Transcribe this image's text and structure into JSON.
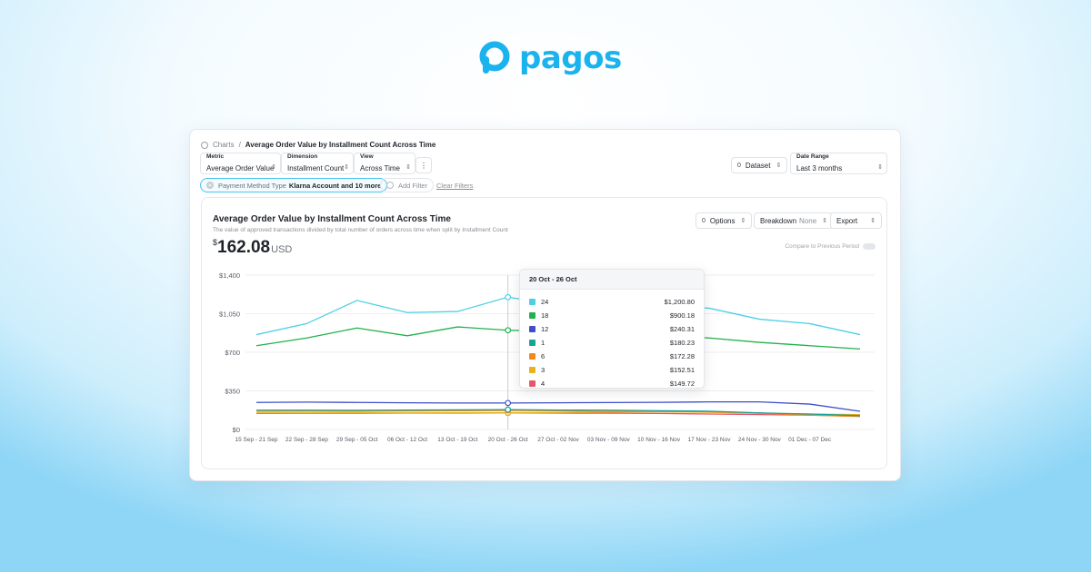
{
  "brand": {
    "name": "pagos"
  },
  "breadcrumb": {
    "root": "Charts",
    "separator": "/",
    "current": "Average Order Value by Installment Count Across Time"
  },
  "controls": {
    "metric": {
      "label": "Metric",
      "value": "Average Order Value"
    },
    "dimension": {
      "label": "Dimension",
      "value": "Installment Count"
    },
    "view": {
      "label": "View",
      "value": "Across Time"
    },
    "more": "⋮",
    "dataset": {
      "count": "0",
      "label": "Dataset"
    },
    "date_range": {
      "label": "Date Range",
      "value": "Last 3 months"
    }
  },
  "filters": {
    "active": {
      "key": "Payment Method Type",
      "value": "Klarna Account and 10 more"
    },
    "add": "Add Filter",
    "clear": "Clear Filters"
  },
  "panel": {
    "title": "Average Order Value by Installment Count Across Time",
    "subtitle": "The value of approved transactions divided by total number of orders across time when split by Installment Count",
    "kpi": {
      "currency": "$",
      "value": "162.08",
      "unit": "USD"
    },
    "options": {
      "count": "0",
      "label": "Options"
    },
    "breakdown": {
      "label": "Breakdown",
      "value": "None"
    },
    "export": "Export",
    "compare": "Compare to Previous Period"
  },
  "tooltip": {
    "title": "20 Oct - 26 Oct",
    "rows": [
      {
        "name": "24",
        "value": "$1,200.80",
        "color": "#4ecfe6"
      },
      {
        "name": "18",
        "value": "$900.18",
        "color": "#22b14c"
      },
      {
        "name": "12",
        "value": "$240.31",
        "color": "#3f4fc9"
      },
      {
        "name": "1",
        "value": "$180.23",
        "color": "#17a398"
      },
      {
        "name": "6",
        "value": "$172.28",
        "color": "#f08a1c"
      },
      {
        "name": "3",
        "value": "$152.51",
        "color": "#e8b21e"
      },
      {
        "name": "4",
        "value": "$149.72",
        "color": "#e5566a"
      }
    ]
  },
  "chart_data": {
    "type": "line",
    "x": [
      "15 Sep - 21 Sep",
      "22 Sep - 28 Sep",
      "29 Sep - 05 Oct",
      "06 Oct - 12 Oct",
      "13 Oct - 19 Oct",
      "20 Oct - 26 Oct",
      "27 Oct - 02 Nov",
      "03 Nov - 09 Nov",
      "10 Nov - 16 Nov",
      "17 Nov - 23 Nov",
      "24 Nov - 30 Nov",
      "01 Dec - 07 Dec",
      ""
    ],
    "ylim": [
      0,
      1400
    ],
    "yticks": [
      {
        "value": 0,
        "label": "$0"
      },
      {
        "value": 350,
        "label": "$350"
      },
      {
        "value": 700,
        "label": "$700"
      },
      {
        "value": 1050,
        "label": "$1,050"
      },
      {
        "value": 1400,
        "label": "$1,400"
      }
    ],
    "highlight_index": 5,
    "series": [
      {
        "name": "24",
        "color": "#4ecfe6",
        "values": [
          860,
          960,
          1170,
          1060,
          1070,
          1200,
          1130,
          1150,
          1120,
          1100,
          1000,
          960,
          860
        ]
      },
      {
        "name": "18",
        "color": "#22b14c",
        "values": [
          760,
          830,
          920,
          850,
          930,
          900,
          890,
          870,
          850,
          830,
          790,
          760,
          730
        ]
      },
      {
        "name": "12",
        "color": "#3f4fc9",
        "values": [
          245,
          248,
          245,
          242,
          240,
          240,
          242,
          244,
          246,
          250,
          250,
          230,
          165
        ]
      },
      {
        "name": "1",
        "color": "#17a398",
        "values": [
          175,
          175,
          174,
          176,
          178,
          180,
          176,
          175,
          170,
          166,
          150,
          140,
          125
        ]
      },
      {
        "name": "6",
        "color": "#f08a1c",
        "values": [
          165,
          166,
          165,
          168,
          170,
          172,
          170,
          165,
          162,
          160,
          150,
          130,
          118
        ]
      },
      {
        "name": "3",
        "color": "#e8b21e",
        "values": [
          150,
          150,
          151,
          150,
          152,
          152,
          155,
          158,
          160,
          156,
          145,
          140,
          135
        ]
      },
      {
        "name": "4",
        "color": "#e5566a",
        "values": [
          145,
          146,
          146,
          148,
          148,
          150,
          148,
          147,
          145,
          140,
          135,
          130,
          120
        ]
      }
    ]
  }
}
